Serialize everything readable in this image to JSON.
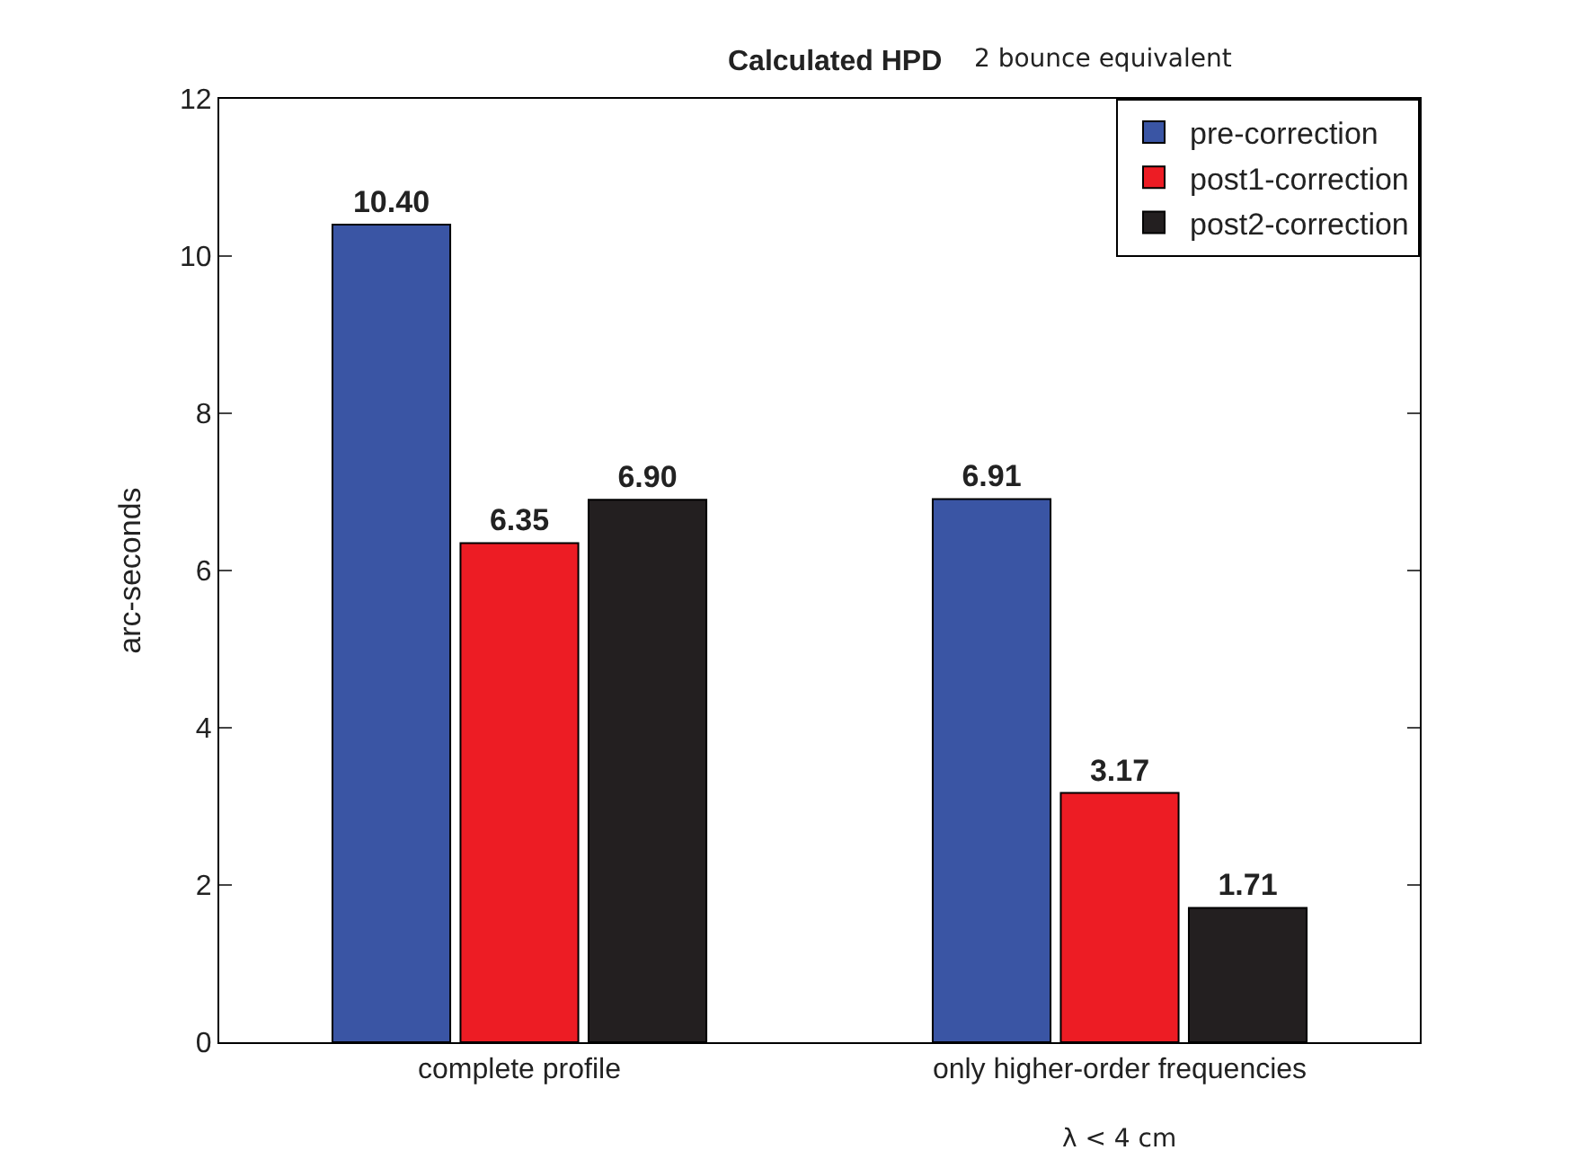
{
  "chart_data": {
    "type": "bar",
    "title": "Calculated HPD",
    "subtitle": "2 bounce equivalent",
    "ylabel": "arc-seconds",
    "categories": [
      "complete profile",
      "only higher-order frequencies"
    ],
    "series": [
      {
        "name": "pre-correction",
        "color": "#3a55a4",
        "values": [
          10.4,
          6.91
        ],
        "value_labels": [
          "10.40",
          "6.91"
        ]
      },
      {
        "name": "post1-correction",
        "color": "#ed1c24",
        "values": [
          6.35,
          3.17
        ],
        "value_labels": [
          "6.35",
          "3.17"
        ]
      },
      {
        "name": "post2-correction",
        "color": "#231f20",
        "values": [
          6.9,
          1.71
        ],
        "value_labels": [
          "6.90",
          "1.71"
        ]
      }
    ],
    "ylim": [
      0,
      12
    ],
    "yticks": [
      0,
      2,
      4,
      6,
      8,
      10,
      12
    ],
    "grid": false,
    "legend": "top right",
    "annotations": [
      "λ < 4 cm"
    ]
  }
}
